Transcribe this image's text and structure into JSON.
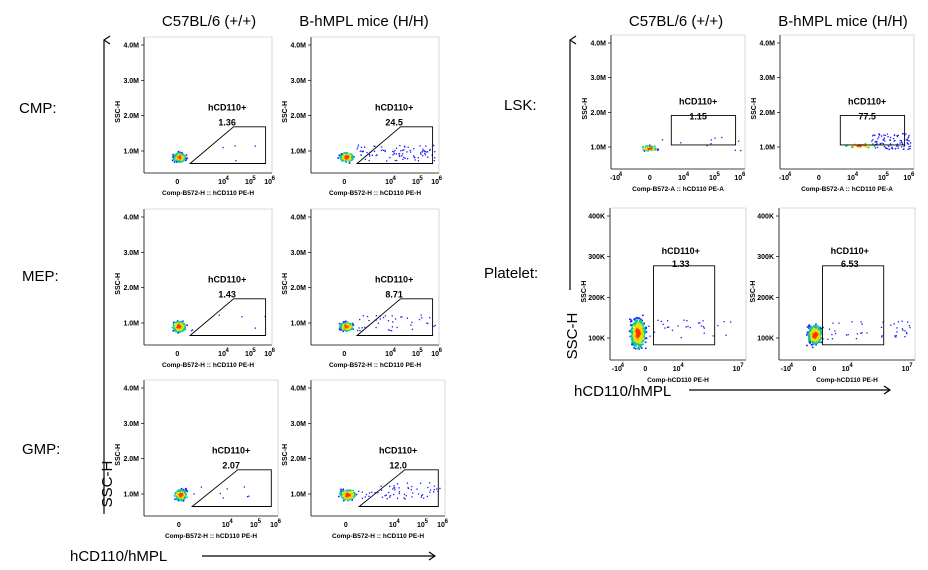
{
  "figure": {
    "left_headers": [
      "C57BL/6 (+/+)",
      "B-hMPL mice (H/H)"
    ],
    "right_headers": [
      "C57BL/6 (+/+)",
      "B-hMPL mice (H/H)"
    ],
    "left_axis": {
      "y_label": "SSC-H",
      "x_label": "hCD110/hMPL"
    },
    "right_axis": {
      "y_label": "SSC-H",
      "x_label": "hCD110/hMPL"
    }
  },
  "colors": {
    "gate": "#000000",
    "density_low": "#1a1aff",
    "density_mid": "#00c8a0",
    "density_high": "#ff3300"
  },
  "chart_data": [
    {
      "type": "scatter",
      "population": "CMP:",
      "strain": "C57BL/6 (+/+)",
      "gate_label": "hCD110+",
      "percent": "1.36",
      "ylabel": "SSC-H",
      "xlabel": "Comp-B572-H :: hCD110 PE-H",
      "y_ticks": [
        "4.0M",
        "3.0M",
        "2.0M",
        "1.0M"
      ],
      "x_ticks": [
        "0",
        "10",
        "4",
        "10",
        "5",
        "10",
        "6"
      ]
    },
    {
      "type": "scatter",
      "population": "CMP:",
      "strain": "B-hMPL mice (H/H)",
      "gate_label": "hCD110+",
      "percent": "24.5",
      "ylabel": "SSC-H",
      "xlabel": "Comp-B572-H :: hCD110 PE-H",
      "y_ticks": [
        "4.0M",
        "3.0M",
        "2.0M",
        "1.0M"
      ],
      "x_ticks": [
        "0",
        "10",
        "4",
        "10",
        "5",
        "10",
        "6"
      ]
    },
    {
      "type": "scatter",
      "population": "MEP:",
      "strain": "C57BL/6 (+/+)",
      "gate_label": "hCD110+",
      "percent": "1.43",
      "ylabel": "SSC-H",
      "xlabel": "Comp-B572-H :: hCD110 PE-H",
      "y_ticks": [
        "4.0M",
        "3.0M",
        "2.0M",
        "1.0M"
      ],
      "x_ticks": [
        "0",
        "10",
        "4",
        "10",
        "5",
        "10",
        "6"
      ]
    },
    {
      "type": "scatter",
      "population": "MEP:",
      "strain": "B-hMPL mice (H/H)",
      "gate_label": "hCD110+",
      "percent": "8.71",
      "ylabel": "SSC-H",
      "xlabel": "Comp-B572-H :: hCD110 PE-H",
      "y_ticks": [
        "4.0M",
        "3.0M",
        "2.0M",
        "1.0M"
      ],
      "x_ticks": [
        "0",
        "10",
        "4",
        "10",
        "5",
        "10",
        "6"
      ]
    },
    {
      "type": "scatter",
      "population": "GMP:",
      "strain": "C57BL/6 (+/+)",
      "gate_label": "hCD110+",
      "percent": "2.07",
      "ylabel": "SSC-H",
      "xlabel": "Comp-B572-H :: hCD110 PE-H",
      "y_ticks": [
        "4.0M",
        "3.0M",
        "2.0M",
        "1.0M"
      ],
      "x_ticks": [
        "0",
        "10",
        "4",
        "10",
        "5",
        "10",
        "6"
      ]
    },
    {
      "type": "scatter",
      "population": "GMP:",
      "strain": "B-hMPL mice (H/H)",
      "gate_label": "hCD110+",
      "percent": "12.0",
      "ylabel": "SSC-H",
      "xlabel": "Comp-B572-H :: hCD110 PE-H",
      "y_ticks": [
        "4.0M",
        "3.0M",
        "2.0M",
        "1.0M"
      ],
      "x_ticks": [
        "0",
        "10",
        "4",
        "10",
        "5",
        "10",
        "6"
      ]
    },
    {
      "type": "scatter",
      "population": "LSK:",
      "strain": "C57BL/6 (+/+)",
      "gate_label": "hCD110+",
      "percent": "1.15",
      "ylabel": "SSC-H",
      "xlabel": "Comp-B572-A :: hCD110 PE-A",
      "y_ticks": [
        "4.0M",
        "3.0M",
        "2.0M",
        "1.0M"
      ],
      "x_ticks": [
        "-10",
        "4",
        "0",
        "10",
        "4",
        "10",
        "5",
        "10",
        "6"
      ]
    },
    {
      "type": "scatter",
      "population": "LSK:",
      "strain": "B-hMPL mice (H/H)",
      "gate_label": "hCD110+",
      "percent": "77.5",
      "ylabel": "SSC-H",
      "xlabel": "Comp-B572-A :: hCD110 PE-A",
      "y_ticks": [
        "4.0M",
        "3.0M",
        "2.0M",
        "1.0M"
      ],
      "x_ticks": [
        "-10",
        "4",
        "0",
        "10",
        "4",
        "10",
        "5",
        "10",
        "6"
      ]
    },
    {
      "type": "scatter",
      "population": "Platelet:",
      "strain": "C57BL/6 (+/+)",
      "gate_label": "hCD110+",
      "percent": "1.33",
      "ylabel": "SSC-H",
      "xlabel": "Comp-hCD110 PE-H",
      "y_ticks": [
        "400K",
        "300K",
        "200K",
        "100K"
      ],
      "x_ticks": [
        "-10",
        "4",
        "0",
        "10",
        "4",
        "10",
        "7"
      ]
    },
    {
      "type": "scatter",
      "population": "Platelet:",
      "strain": "B-hMPL mice (H/H)",
      "gate_label": "hCD110+",
      "percent": "6.53",
      "ylabel": "SSC-H",
      "xlabel": "Comp-hCD110 PE-H",
      "y_ticks": [
        "400K",
        "300K",
        "200K",
        "100K"
      ],
      "x_ticks": [
        "-10",
        "4",
        "0",
        "10",
        "4",
        "10",
        "7"
      ]
    }
  ]
}
